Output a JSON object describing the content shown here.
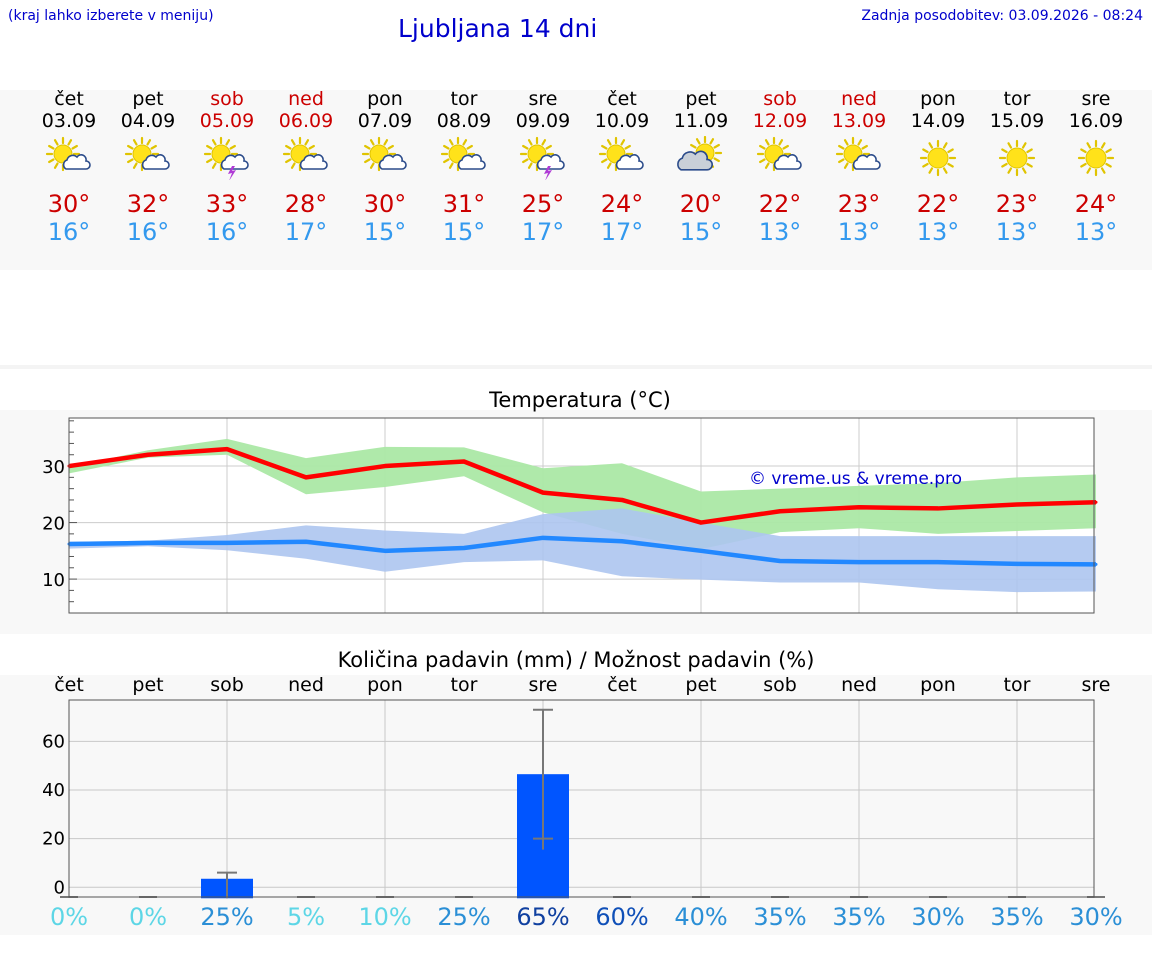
{
  "header": {
    "left_note": "(kraj lahko izberete v meniju)",
    "title": "Ljubljana 14 dni",
    "updated": "Zadnja posodobitev: 03.09.2026 - 08:24"
  },
  "days": [
    {
      "name": "čet",
      "date": "03.09",
      "weekend": false,
      "icon": "sun-cloud-icon",
      "tmax": "30°",
      "tmin": "16°"
    },
    {
      "name": "pet",
      "date": "04.09",
      "weekend": false,
      "icon": "sun-cloud-icon",
      "tmax": "32°",
      "tmin": "16°"
    },
    {
      "name": "sob",
      "date": "05.09",
      "weekend": true,
      "icon": "sun-cloud-storm-icon",
      "tmax": "33°",
      "tmin": "16°"
    },
    {
      "name": "ned",
      "date": "06.09",
      "weekend": true,
      "icon": "sun-cloud-icon",
      "tmax": "28°",
      "tmin": "17°"
    },
    {
      "name": "pon",
      "date": "07.09",
      "weekend": false,
      "icon": "sun-cloud-icon",
      "tmax": "30°",
      "tmin": "15°"
    },
    {
      "name": "tor",
      "date": "08.09",
      "weekend": false,
      "icon": "sun-cloud-icon",
      "tmax": "31°",
      "tmin": "15°"
    },
    {
      "name": "sre",
      "date": "09.09",
      "weekend": false,
      "icon": "sun-cloud-storm-icon",
      "tmax": "25°",
      "tmin": "17°"
    },
    {
      "name": "čet",
      "date": "10.09",
      "weekend": false,
      "icon": "sun-cloud-icon",
      "tmax": "24°",
      "tmin": "17°"
    },
    {
      "name": "pet",
      "date": "11.09",
      "weekend": false,
      "icon": "cloud-sun-icon",
      "tmax": "20°",
      "tmin": "15°"
    },
    {
      "name": "sob",
      "date": "12.09",
      "weekend": true,
      "icon": "sun-cloud-icon",
      "tmax": "22°",
      "tmin": "13°"
    },
    {
      "name": "ned",
      "date": "13.09",
      "weekend": true,
      "icon": "sun-cloud-icon",
      "tmax": "23°",
      "tmin": "13°"
    },
    {
      "name": "pon",
      "date": "14.09",
      "weekend": false,
      "icon": "sun-icon",
      "tmax": "22°",
      "tmin": "13°"
    },
    {
      "name": "tor",
      "date": "15.09",
      "weekend": false,
      "icon": "sun-icon",
      "tmax": "23°",
      "tmin": "13°"
    },
    {
      "name": "sre",
      "date": "16.09",
      "weekend": false,
      "icon": "sun-icon",
      "tmax": "24°",
      "tmin": "13°"
    }
  ],
  "colors": {
    "max": "#ff0000",
    "min": "#2288ff",
    "max_band": "#abe8a5",
    "min_band": "#adc5f0",
    "bar": "#0055ff",
    "weekend_text": "#cc0000",
    "title_blue": "#0000cc"
  },
  "chart_data": [
    {
      "type": "line",
      "title": "Temperatura (°C)",
      "watermark": "© vreme.us & vreme.pro",
      "x": [
        "03.09",
        "04.09",
        "05.09",
        "06.09",
        "07.09",
        "08.09",
        "09.09",
        "10.09",
        "11.09",
        "12.09",
        "13.09",
        "14.09",
        "15.09",
        "16.09"
      ],
      "ylim": [
        4,
        38.5
      ],
      "yticks": [
        10,
        20,
        30
      ],
      "grid": true,
      "series": [
        {
          "role": "max",
          "values": [
            30,
            32,
            33,
            28,
            30,
            30.8,
            25.3,
            24,
            20,
            22,
            22.7,
            22.5,
            23.2,
            23.6
          ]
        },
        {
          "role": "min",
          "values": [
            16.2,
            16.4,
            16.4,
            16.6,
            15,
            15.5,
            17.3,
            16.7,
            15,
            13.2,
            13,
            13,
            12.7,
            12.6
          ]
        }
      ],
      "bands": [
        {
          "role": "max_range",
          "upper": [
            29.8,
            32.8,
            34.8,
            31.4,
            33.4,
            33.3,
            29.6,
            30.5,
            25.5,
            26,
            26.5,
            27,
            28,
            28.5
          ],
          "lower": [
            28.7,
            31.5,
            32,
            25,
            26.3,
            28.2,
            21.8,
            18,
            15.3,
            18.3,
            19,
            18,
            18.5,
            19
          ]
        },
        {
          "role": "min_range",
          "upper": [
            16.6,
            16.8,
            17.8,
            19.5,
            18.6,
            18,
            21.5,
            22.5,
            20,
            17.6,
            17.6,
            17.6,
            17.6,
            17.6
          ]
        }
      ]
    },
    {
      "type": "bar",
      "title": "Količina padavin (mm) / Možnost padavin (%)",
      "categories": [
        "čet",
        "pet",
        "sob",
        "ned",
        "pon",
        "tor",
        "sre",
        "čet",
        "pet",
        "sob",
        "ned",
        "pon",
        "tor",
        "sre"
      ],
      "values": [
        0,
        0,
        3.5,
        0,
        0,
        0,
        46.5,
        0,
        0,
        0,
        0,
        0,
        0,
        0
      ],
      "error_low": [
        0,
        0,
        0,
        0,
        0,
        0,
        20,
        0,
        0,
        0,
        0,
        0,
        0,
        0
      ],
      "error_high": [
        0,
        0,
        6,
        0,
        0,
        0,
        73,
        0,
        0,
        0,
        0,
        0,
        0,
        0
      ],
      "ylim": [
        -4,
        77
      ],
      "yticks": [
        0,
        20,
        40,
        60
      ],
      "probability": [
        "0%",
        "0%",
        "25%",
        "5%",
        "10%",
        "25%",
        "65%",
        "60%",
        "40%",
        "35%",
        "35%",
        "30%",
        "35%",
        "30%"
      ],
      "probability_colors": [
        "#5dd6e6",
        "#5dd6e6",
        "#2b8fd6",
        "#5dd6e6",
        "#5dd6e6",
        "#2b8fd6",
        "#1040a0",
        "#1050b8",
        "#2b8fd6",
        "#2b8fd6",
        "#2b8fd6",
        "#2b8fd6",
        "#2b8fd6",
        "#2b8fd6"
      ]
    }
  ]
}
